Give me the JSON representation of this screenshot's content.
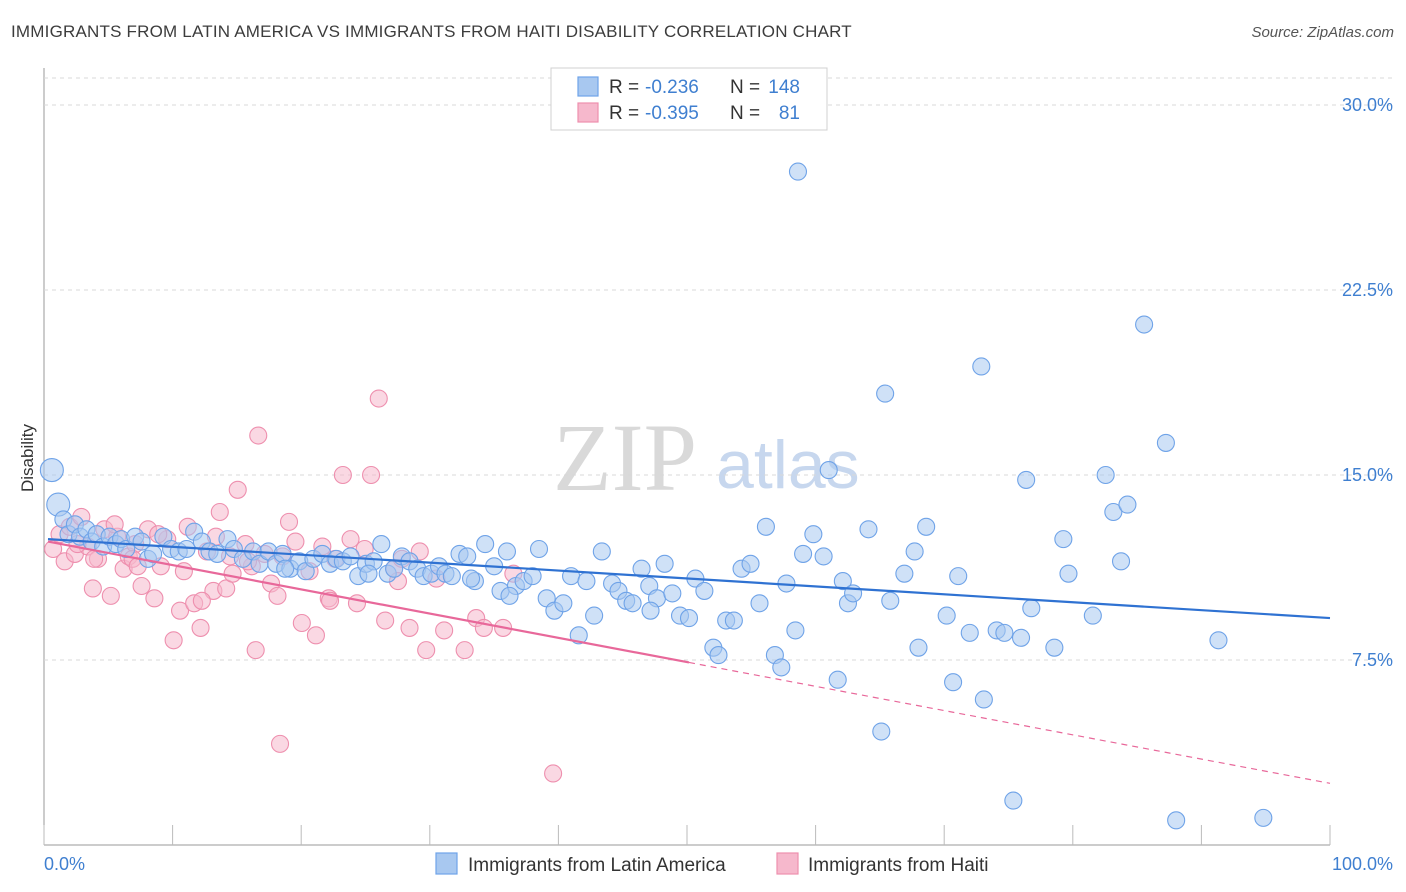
{
  "header": {
    "title": "IMMIGRANTS FROM LATIN AMERICA VS IMMIGRANTS FROM HAITI DISABILITY CORRELATION CHART",
    "source": "Source: ZipAtlas.com"
  },
  "watermark": {
    "zip": "ZIP",
    "atlas": "atlas"
  },
  "legend": {
    "r_label": "R =",
    "n_label": "N =",
    "series": [
      {
        "r": "-0.236",
        "n": "148",
        "color": "#6fa3e8"
      },
      {
        "r": "-0.395",
        "n": "81",
        "color": "#f08db0"
      }
    ]
  },
  "colors": {
    "blue_fill": "#a8c8f0",
    "blue_stroke": "#6fa3e8",
    "blue_line": "#2f72d2",
    "pink_fill": "#f6b8cc",
    "pink_stroke": "#ee8fae",
    "pink_line": "#e8689a",
    "grid": "#d8d8d8",
    "tick_text": "#3f7fd0"
  },
  "chart_data": {
    "type": "scatter",
    "title": "IMMIGRANTS FROM LATIN AMERICA VS IMMIGRANTS FROM HAITI DISABILITY CORRELATION CHART",
    "xlabel": "",
    "ylabel": "Disability",
    "xlim": [
      0,
      100
    ],
    "ylim": [
      0,
      31.5
    ],
    "x_tick_labels": [
      "0.0%",
      "100.0%"
    ],
    "y_ticks": [
      7.5,
      15.0,
      22.5,
      30.0
    ],
    "y_tick_labels": [
      "7.5%",
      "15.0%",
      "22.5%",
      "30.0%"
    ],
    "grid": "horizontal dashed",
    "legend_position": "top-center",
    "series": [
      {
        "name": "Immigrants from Latin America",
        "trend": {
          "x": [
            0,
            100
          ],
          "y": [
            12.4,
            9.2
          ],
          "solid_to": 100
        },
        "points": [
          [
            0.3,
            15.2
          ],
          [
            0.8,
            13.8
          ],
          [
            1.2,
            13.2
          ],
          [
            1.6,
            12.6
          ],
          [
            2.1,
            13.0
          ],
          [
            2.5,
            12.5
          ],
          [
            3.0,
            12.8
          ],
          [
            3.4,
            12.3
          ],
          [
            3.8,
            12.6
          ],
          [
            4.3,
            12.1
          ],
          [
            4.8,
            12.5
          ],
          [
            5.3,
            12.2
          ],
          [
            5.7,
            12.4
          ],
          [
            6.1,
            12.0
          ],
          [
            6.8,
            12.5
          ],
          [
            7.3,
            12.3
          ],
          [
            7.8,
            11.6
          ],
          [
            8.2,
            11.8
          ],
          [
            9.0,
            12.5
          ],
          [
            9.6,
            12.0
          ],
          [
            10.2,
            11.9
          ],
          [
            10.8,
            12.0
          ],
          [
            11.4,
            12.7
          ],
          [
            12.0,
            12.3
          ],
          [
            12.6,
            11.9
          ],
          [
            13.2,
            11.8
          ],
          [
            14.0,
            12.4
          ],
          [
            14.5,
            12.0
          ],
          [
            15.2,
            11.6
          ],
          [
            16.0,
            11.9
          ],
          [
            16.5,
            11.4
          ],
          [
            17.2,
            11.9
          ],
          [
            17.8,
            11.4
          ],
          [
            18.3,
            11.8
          ],
          [
            18.9,
            11.2
          ],
          [
            19.6,
            11.5
          ],
          [
            20.1,
            11.1
          ],
          [
            20.7,
            11.6
          ],
          [
            21.4,
            11.8
          ],
          [
            22.0,
            11.4
          ],
          [
            22.5,
            11.6
          ],
          [
            23.0,
            11.5
          ],
          [
            23.6,
            11.7
          ],
          [
            24.2,
            10.9
          ],
          [
            24.8,
            11.4
          ],
          [
            25.4,
            11.5
          ],
          [
            26.0,
            12.2
          ],
          [
            26.5,
            11.0
          ],
          [
            27.0,
            11.2
          ],
          [
            27.6,
            11.7
          ],
          [
            28.2,
            11.5
          ],
          [
            28.8,
            11.2
          ],
          [
            29.3,
            10.9
          ],
          [
            29.9,
            11.0
          ],
          [
            30.5,
            11.3
          ],
          [
            31.0,
            11.0
          ],
          [
            31.5,
            10.9
          ],
          [
            32.1,
            11.8
          ],
          [
            32.7,
            11.7
          ],
          [
            33.3,
            10.7
          ],
          [
            34.1,
            12.2
          ],
          [
            34.8,
            11.3
          ],
          [
            35.3,
            10.3
          ],
          [
            35.8,
            11.9
          ],
          [
            36.5,
            10.5
          ],
          [
            37.1,
            10.7
          ],
          [
            37.8,
            10.9
          ],
          [
            38.3,
            12.0
          ],
          [
            38.9,
            10.0
          ],
          [
            39.5,
            9.5
          ],
          [
            40.2,
            9.8
          ],
          [
            40.8,
            10.9
          ],
          [
            41.4,
            8.5
          ],
          [
            42.0,
            10.7
          ],
          [
            42.6,
            9.3
          ],
          [
            43.2,
            11.9
          ],
          [
            44.0,
            10.6
          ],
          [
            44.5,
            10.3
          ],
          [
            45.1,
            9.9
          ],
          [
            45.6,
            9.8
          ],
          [
            46.3,
            11.2
          ],
          [
            46.9,
            10.5
          ],
          [
            47.5,
            10.0
          ],
          [
            48.1,
            11.4
          ],
          [
            48.7,
            10.2
          ],
          [
            49.3,
            9.3
          ],
          [
            50.0,
            9.2
          ],
          [
            50.5,
            10.8
          ],
          [
            51.2,
            10.3
          ],
          [
            51.9,
            8.0
          ],
          [
            52.3,
            7.7
          ],
          [
            52.9,
            9.1
          ],
          [
            53.5,
            9.1
          ],
          [
            54.1,
            11.2
          ],
          [
            54.8,
            11.4
          ],
          [
            55.5,
            9.8
          ],
          [
            56.0,
            12.9
          ],
          [
            56.7,
            7.7
          ],
          [
            57.2,
            7.2
          ],
          [
            57.6,
            10.6
          ],
          [
            58.3,
            8.7
          ],
          [
            58.9,
            11.8
          ],
          [
            59.7,
            12.6
          ],
          [
            60.5,
            11.7
          ],
          [
            60.9,
            15.2
          ],
          [
            61.6,
            6.7
          ],
          [
            62.0,
            10.7
          ],
          [
            62.4,
            9.8
          ],
          [
            62.8,
            10.2
          ],
          [
            64.0,
            12.8
          ],
          [
            65.0,
            4.6
          ],
          [
            65.3,
            18.3
          ],
          [
            65.7,
            9.9
          ],
          [
            66.8,
            11.0
          ],
          [
            67.6,
            11.9
          ],
          [
            67.9,
            8.0
          ],
          [
            68.5,
            12.9
          ],
          [
            70.1,
            9.3
          ],
          [
            70.6,
            6.6
          ],
          [
            71.0,
            10.9
          ],
          [
            71.9,
            8.6
          ],
          [
            72.8,
            19.4
          ],
          [
            73.0,
            5.9
          ],
          [
            74.0,
            8.7
          ],
          [
            74.6,
            8.6
          ],
          [
            75.3,
            1.8
          ],
          [
            75.9,
            8.4
          ],
          [
            76.3,
            14.8
          ],
          [
            76.7,
            9.6
          ],
          [
            78.5,
            8.0
          ],
          [
            79.2,
            12.4
          ],
          [
            79.6,
            11.0
          ],
          [
            81.5,
            9.3
          ],
          [
            82.5,
            15.0
          ],
          [
            83.1,
            13.5
          ],
          [
            83.7,
            11.5
          ],
          [
            84.2,
            13.8
          ],
          [
            85.5,
            21.1
          ],
          [
            87.2,
            16.3
          ],
          [
            88.0,
            1.0
          ],
          [
            91.3,
            8.3
          ],
          [
            94.8,
            1.1
          ],
          [
            58.5,
            27.3
          ],
          [
            18.5,
            11.2
          ],
          [
            25.0,
            11.0
          ],
          [
            33.0,
            10.8
          ],
          [
            47.0,
            9.5
          ],
          [
            36.0,
            10.1
          ]
        ]
      },
      {
        "name": "Immigrants from Haiti",
        "trend": {
          "x": [
            0,
            100
          ],
          "y": [
            12.3,
            2.5
          ],
          "solid_to": 50
        },
        "points": [
          [
            0.4,
            12.0
          ],
          [
            0.9,
            12.6
          ],
          [
            1.3,
            11.5
          ],
          [
            1.7,
            12.9
          ],
          [
            2.1,
            11.8
          ],
          [
            2.6,
            13.3
          ],
          [
            3.1,
            12.1
          ],
          [
            3.5,
            10.4
          ],
          [
            3.9,
            11.6
          ],
          [
            4.4,
            12.8
          ],
          [
            4.9,
            10.1
          ],
          [
            5.4,
            12.5
          ],
          [
            5.9,
            11.2
          ],
          [
            6.3,
            11.7
          ],
          [
            6.8,
            12.2
          ],
          [
            7.3,
            10.5
          ],
          [
            7.8,
            12.8
          ],
          [
            8.3,
            10.0
          ],
          [
            8.8,
            11.3
          ],
          [
            9.3,
            12.4
          ],
          [
            9.8,
            8.3
          ],
          [
            10.3,
            9.5
          ],
          [
            10.9,
            12.9
          ],
          [
            11.4,
            9.8
          ],
          [
            11.9,
            8.8
          ],
          [
            12.4,
            11.9
          ],
          [
            12.9,
            10.3
          ],
          [
            13.4,
            13.5
          ],
          [
            13.9,
            10.4
          ],
          [
            14.4,
            11.0
          ],
          [
            14.8,
            14.4
          ],
          [
            15.4,
            12.2
          ],
          [
            15.9,
            11.3
          ],
          [
            16.4,
            16.6
          ],
          [
            16.9,
            11.8
          ],
          [
            17.4,
            10.6
          ],
          [
            17.9,
            10.1
          ],
          [
            18.3,
            11.7
          ],
          [
            18.8,
            13.1
          ],
          [
            19.3,
            12.3
          ],
          [
            19.8,
            9.0
          ],
          [
            20.4,
            11.1
          ],
          [
            20.9,
            8.5
          ],
          [
            21.4,
            12.1
          ],
          [
            21.9,
            10.0
          ],
          [
            22.4,
            11.6
          ],
          [
            23.0,
            15.0
          ],
          [
            23.6,
            12.4
          ],
          [
            24.1,
            9.8
          ],
          [
            24.7,
            12.0
          ],
          [
            25.2,
            15.0
          ],
          [
            25.8,
            18.1
          ],
          [
            26.3,
            9.1
          ],
          [
            27.0,
            11.2
          ],
          [
            27.6,
            11.6
          ],
          [
            28.2,
            8.8
          ],
          [
            29.5,
            7.9
          ],
          [
            30.3,
            10.8
          ],
          [
            32.5,
            7.9
          ],
          [
            33.4,
            9.2
          ],
          [
            34.0,
            8.8
          ],
          [
            35.5,
            8.8
          ],
          [
            39.4,
            2.9
          ],
          [
            36.3,
            11.0
          ],
          [
            29.0,
            11.9
          ],
          [
            2.3,
            12.2
          ],
          [
            3.6,
            11.6
          ],
          [
            5.2,
            13.0
          ],
          [
            6.6,
            11.6
          ],
          [
            7.0,
            11.3
          ],
          [
            8.6,
            12.6
          ],
          [
            10.6,
            11.1
          ],
          [
            12.0,
            9.9
          ],
          [
            13.1,
            12.5
          ],
          [
            14.2,
            11.7
          ],
          [
            15.6,
            11.5
          ],
          [
            16.2,
            7.9
          ],
          [
            18.1,
            4.1
          ],
          [
            22.0,
            9.9
          ],
          [
            27.3,
            10.7
          ],
          [
            30.9,
            8.7
          ]
        ]
      }
    ]
  },
  "bottom_legend": [
    {
      "label": "Immigrants from Latin America"
    },
    {
      "label": "Immigrants from Haiti"
    }
  ]
}
